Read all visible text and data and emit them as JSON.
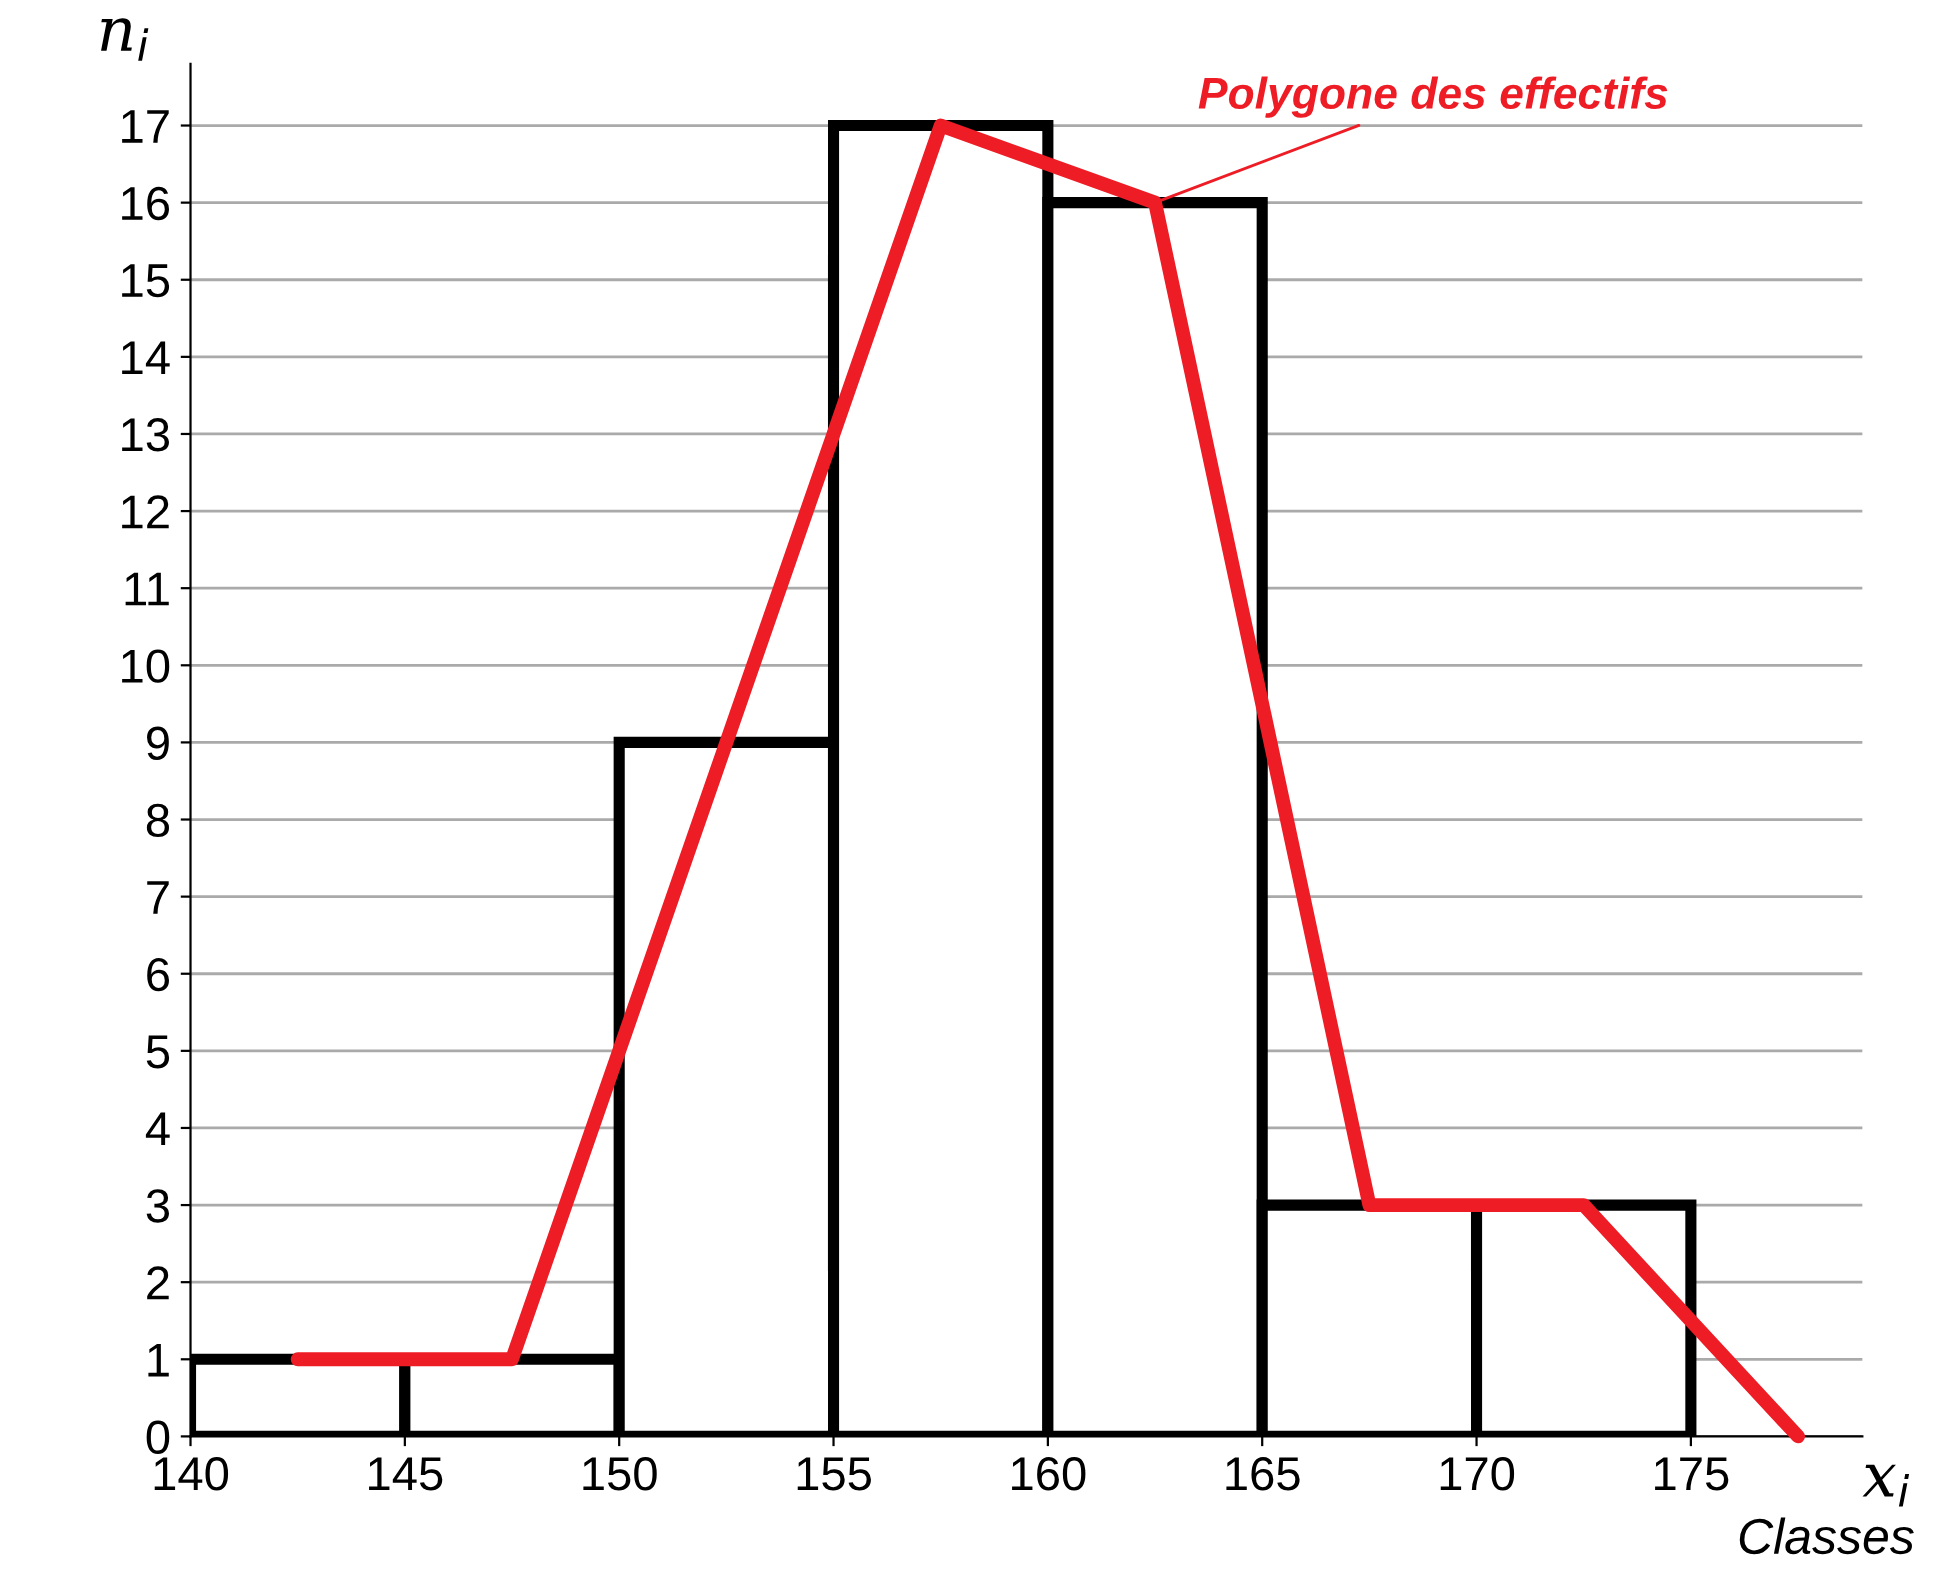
{
  "chart_data": {
    "type": "histogram",
    "xlabel": "x$_{i}$",
    "ylabel": "n$_{i}$",
    "series": [
      {
        "color": "#ffffff",
        "bins": [
          140,
          145,
          150,
          155,
          160,
          165,
          170,
          175
        ],
        "values": [
          1,
          1,
          9,
          17,
          16,
          3,
          3
        ]
      },
      {
        "type": "line",
        "color": "#ee1c25",
        "x": [
          142.5,
          147.5,
          152.5,
          157.5,
          162.5,
          167.5,
          172.5,
          177.5
        ],
        "values": [
          1,
          1,
          9,
          17,
          16,
          3,
          3,
          0
        ]
      }
    ],
    "annotations": [
      {
        "text": "Polygone des effectifs",
        "x": 162.5,
        "y": 16
      },
      "Classes"
    ],
    "xlim": [
      140,
      179
    ],
    "ylim": [
      0,
      17.8
    ],
    "xticks": [
      140,
      145,
      150,
      155,
      160,
      165,
      170,
      175
    ],
    "yticks": [
      0,
      1,
      2,
      3,
      4,
      5,
      6,
      7,
      8,
      9,
      10,
      11,
      12,
      13,
      14,
      15,
      16,
      17
    ],
    "grid": "y",
    "legend": false,
    "marker": "none",
    "line_style": "solid"
  }
}
